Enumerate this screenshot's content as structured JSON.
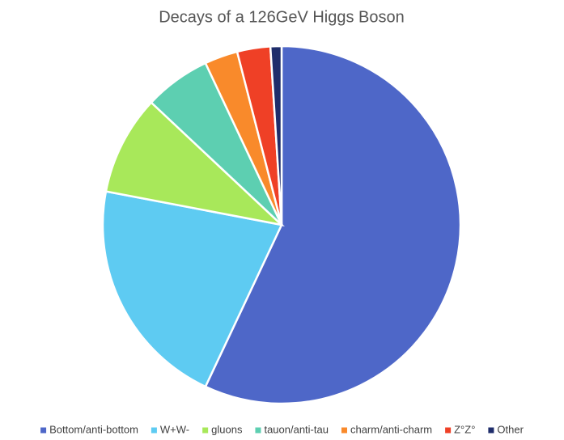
{
  "chart_data": {
    "type": "pie",
    "title": "Decays of a 126GeV Higgs Boson",
    "categories": [
      "Bottom/anti-bottom",
      "W+W-",
      "gluons",
      "tauon/anti-tau",
      "charm/anti-charm",
      "Z°Z°",
      "Other"
    ],
    "values": [
      57,
      21,
      9,
      6,
      3,
      3,
      1
    ],
    "colors": [
      "#4e67c8",
      "#5ecbf2",
      "#a8e85a",
      "#5dcfb1",
      "#f98a2b",
      "#ef4026",
      "#1f2d6b"
    ],
    "legend": "bottom"
  }
}
